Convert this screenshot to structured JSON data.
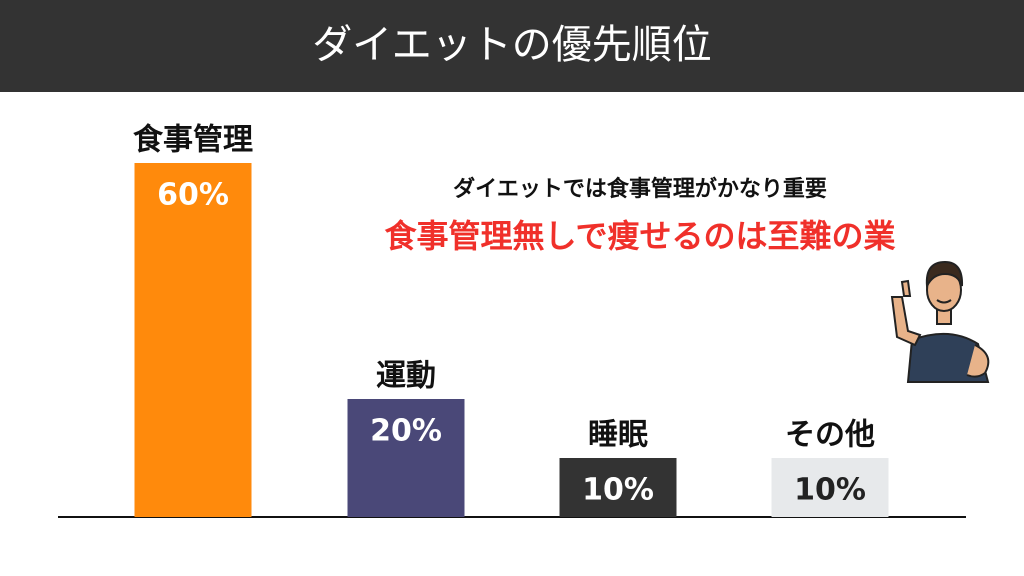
{
  "chart_data": {
    "type": "bar",
    "title": "ダイエットの優先順位",
    "categories": [
      "食事管理",
      "運動",
      "睡眠",
      "その他"
    ],
    "values": [
      60,
      20,
      10,
      10
    ],
    "value_labels": [
      "60%",
      "20%",
      "10%",
      "10%"
    ],
    "colors": [
      "#ff8a0c",
      "#4a4878",
      "#333333",
      "#e7e9eb"
    ],
    "label_colors": [
      "#ffffff",
      "#ffffff",
      "#ffffff",
      "#222222"
    ],
    "annotations": [
      "ダイエットでは食事管理がかなり重要",
      "食事管理無しで痩せるのは至難の業"
    ],
    "annotation_colors": [
      "#111111",
      "#f0302a"
    ]
  }
}
